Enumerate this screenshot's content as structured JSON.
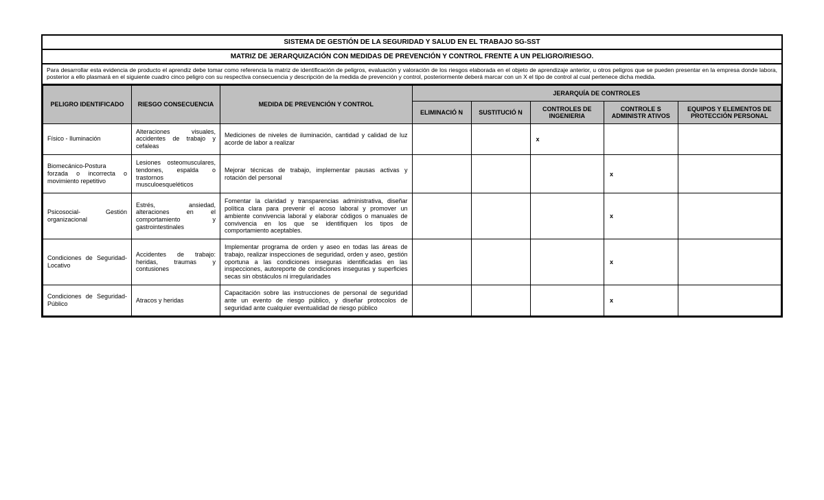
{
  "titles": {
    "main": "SISTEMA DE GESTIÓN DE LA SEGURIDAD Y SALUD EN EL TRABAJO SG-SST",
    "sub": "MATRIZ DE JERARQUIZACIÓN CON MEDIDAS DE PREVENCIÓN Y CONTROL FRENTE A UN PELIGRO/RIESGO."
  },
  "description": "Para desarrollar esta evidencia de producto el aprendiz debe tomar como referencia la matriz de identificación de peligros, evaluación y valoración de los riesgos elaborada en el objeto de aprendizaje anterior, u otros peligros que se pueden presentar en la empresa donde labora, posterior a ello plasmará en el siguiente cuadro cinco peligro con su respectiva consecuencia y descripción de la medida de prevención y control, posteriormente deberá marcar con un X el tipo de control al cual pertenece dicha medida.",
  "headers": {
    "peligro": "PELIGRO IDENTIFICADO",
    "riesgo": "RIESGO CONSECUENCIA",
    "medida": "MEDIDA DE PREVENCIÓN Y CONTROL",
    "jerarquia": "JERARQUÍA DE CONTROLES",
    "eliminacion": "ELIMINACIÓ N",
    "sustitucion": "SUSTITUCIÓ N",
    "ingenieria": "CONTROLES DE INGENIERIA",
    "admin": "CONTROLE S ADMINISTR ATIVOS",
    "epp": "EQUIPOS Y ELEMENTOS DE PROTECCIÓN PERSONAL"
  },
  "rows": [
    {
      "peligro": "Físico - Iluminación",
      "riesgo": "Alteraciones visuales, accidentes de trabajo y cefaleas",
      "medida": "Mediciones de niveles de iluminación, cantidad y calidad de luz acorde de labor a realizar",
      "eliminacion": "",
      "sustitucion": "",
      "ingenieria": "x",
      "admin": "",
      "epp": ""
    },
    {
      "peligro": "Biomecánico-Postura forzada o incorrecta o movimiento repetitivo",
      "riesgo": "Lesiones osteomusculares, tendones, espalda o trastornos musculoesqueléticos",
      "medida": "Mejorar técnicas de trabajo, implementar pausas activas y rotación del personal",
      "eliminacion": "",
      "sustitucion": "",
      "ingenieria": "",
      "admin": "x",
      "epp": ""
    },
    {
      "peligro": "Psicosocial- Gestión organizacional",
      "riesgo": "Estrés, ansiedad, alteraciones en el comportamiento y gastrointestinales",
      "medida": "Fomentar la claridad y transparencias administrativa, diseñar política clara para prevenir el acoso laboral y promover un ambiente convivencia laboral y elaborar códigos o manuales de convivencia en los que se identifiquen los tipos de comportamiento aceptables.",
      "eliminacion": "",
      "sustitucion": "",
      "ingenieria": "",
      "admin": "x",
      "epp": ""
    },
    {
      "peligro": "Condiciones de Seguridad- Locativo",
      "riesgo": "Accidentes de trabajo: heridas, traumas y contusiones",
      "medida": "Implementar programa de orden y aseo en todas las áreas de trabajo, realizar inspecciones de seguridad, orden y aseo, gestión oportuna a las condiciones inseguras identificadas en las inspecciones, autoreporte de condiciones inseguras y superficies secas sin obstáculos ni irregularidades",
      "eliminacion": "",
      "sustitucion": "",
      "ingenieria": "",
      "admin": "x",
      "epp": ""
    },
    {
      "peligro": "Condiciones de Seguridad- Público",
      "riesgo": "Atracos y heridas",
      "medida": "Capacitación sobre las instrucciones de personal de seguridad ante un evento de riesgo público, y diseñar protocolos de seguridad ante cualquier eventualidad de riesgo público",
      "eliminacion": "",
      "sustitucion": "",
      "ingenieria": "",
      "admin": "x",
      "epp": ""
    }
  ]
}
